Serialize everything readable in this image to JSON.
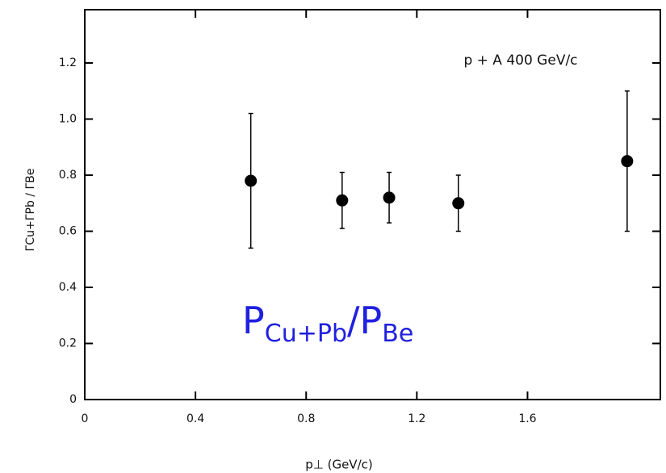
{
  "chart_data": {
    "type": "errorbar",
    "annotation": "p + A   400 GeV/c",
    "xlabel": "p⊥   (GeV/c)",
    "ylabel": "ΓCu+ΓPb / ΓBe",
    "overlay_label": {
      "main": "P",
      "main_sub": "Cu+Pb",
      "slash": "/",
      "denominator": "P",
      "denominator_sub": "Be"
    },
    "x": [
      0.6,
      0.93,
      1.1,
      1.35,
      1.96
    ],
    "values": [
      0.78,
      0.71,
      0.72,
      0.7,
      0.85
    ],
    "errors": [
      0.24,
      0.1,
      0.09,
      0.1,
      0.25
    ],
    "color": "#000000",
    "overlay_color": "#2020e0",
    "xlim": [
      0,
      2.08
    ],
    "ylim": [
      0,
      1.39
    ],
    "xticks": [
      0,
      0.4,
      0.8,
      1.2,
      1.6
    ],
    "yticks": [
      0,
      0.2,
      0.4,
      0.6,
      0.8,
      {
        "value": 1.0,
        "label": "1.0"
      },
      1.2
    ]
  }
}
